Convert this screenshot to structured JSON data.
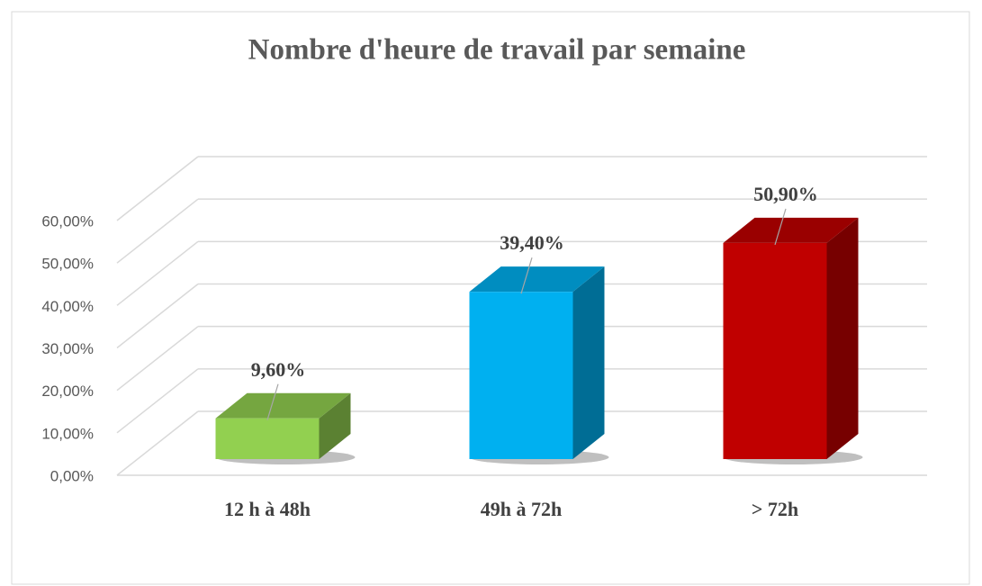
{
  "chart_data": {
    "type": "bar3d",
    "title": "Nombre d'heure de travail par semaine",
    "categories": [
      "12 h  à 48h",
      "49h à 72h",
      "> 72h"
    ],
    "values": [
      9.6,
      39.4,
      50.9
    ],
    "value_labels": [
      "9,60%",
      "39,40%",
      "50,90%"
    ],
    "colors": [
      "#92d050",
      "#00b0f0",
      "#c00000"
    ],
    "ylim": [
      0,
      60
    ],
    "yticks": [
      {
        "value": 0,
        "label": "0,00%"
      },
      {
        "value": 10,
        "label": "10,00%"
      },
      {
        "value": 20,
        "label": "20,00%"
      },
      {
        "value": 30,
        "label": "30,00%"
      },
      {
        "value": 40,
        "label": "40,00%"
      },
      {
        "value": 50,
        "label": "50,00%"
      },
      {
        "value": 60,
        "label": "60,00%"
      }
    ],
    "grid": true
  }
}
